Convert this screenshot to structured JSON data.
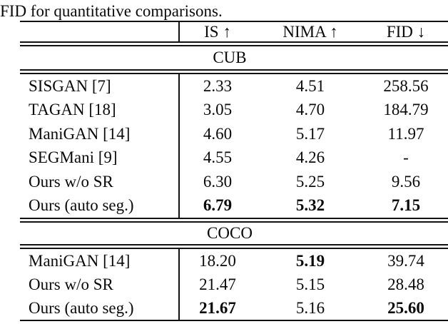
{
  "caption": "FID for quantitative comparisons.",
  "colors": {
    "text": "#0a0a0a",
    "rule": "#111111",
    "background": "#ffffff"
  },
  "header": {
    "cols": [
      "IS ↑",
      "NIMA ↑",
      "FID ↓"
    ]
  },
  "sections": [
    {
      "title": "CUB",
      "rows": [
        {
          "name": "SISGAN [7]",
          "values": [
            "2.33",
            "4.51",
            "258.56"
          ],
          "bold": [
            false,
            false,
            false
          ]
        },
        {
          "name": "TAGAN [18]",
          "values": [
            "3.05",
            "4.70",
            "184.79"
          ],
          "bold": [
            false,
            false,
            false
          ]
        },
        {
          "name": "ManiGAN [14]",
          "values": [
            "4.60",
            "5.17",
            "11.97"
          ],
          "bold": [
            false,
            false,
            false
          ]
        },
        {
          "name": "SEGMani [9]",
          "values": [
            "4.55",
            "4.26",
            "-"
          ],
          "bold": [
            false,
            false,
            false
          ]
        },
        {
          "name": "Ours w/o SR",
          "values": [
            "6.30",
            "5.25",
            "9.56"
          ],
          "bold": [
            false,
            false,
            false
          ]
        },
        {
          "name": "Ours (auto seg.)",
          "values": [
            "6.79",
            "5.32",
            "7.15"
          ],
          "bold": [
            true,
            true,
            true
          ]
        }
      ]
    },
    {
      "title": "COCO",
      "rows": [
        {
          "name": "ManiGAN [14]",
          "values": [
            "18.20",
            "5.19",
            "39.74"
          ],
          "bold": [
            false,
            true,
            false
          ]
        },
        {
          "name": "Ours w/o SR",
          "values": [
            "21.47",
            "5.15",
            "28.48"
          ],
          "bold": [
            false,
            false,
            false
          ]
        },
        {
          "name": "Ours (auto seg.)",
          "values": [
            "21.67",
            "5.16",
            "25.60"
          ],
          "bold": [
            true,
            false,
            true
          ]
        }
      ]
    }
  ]
}
